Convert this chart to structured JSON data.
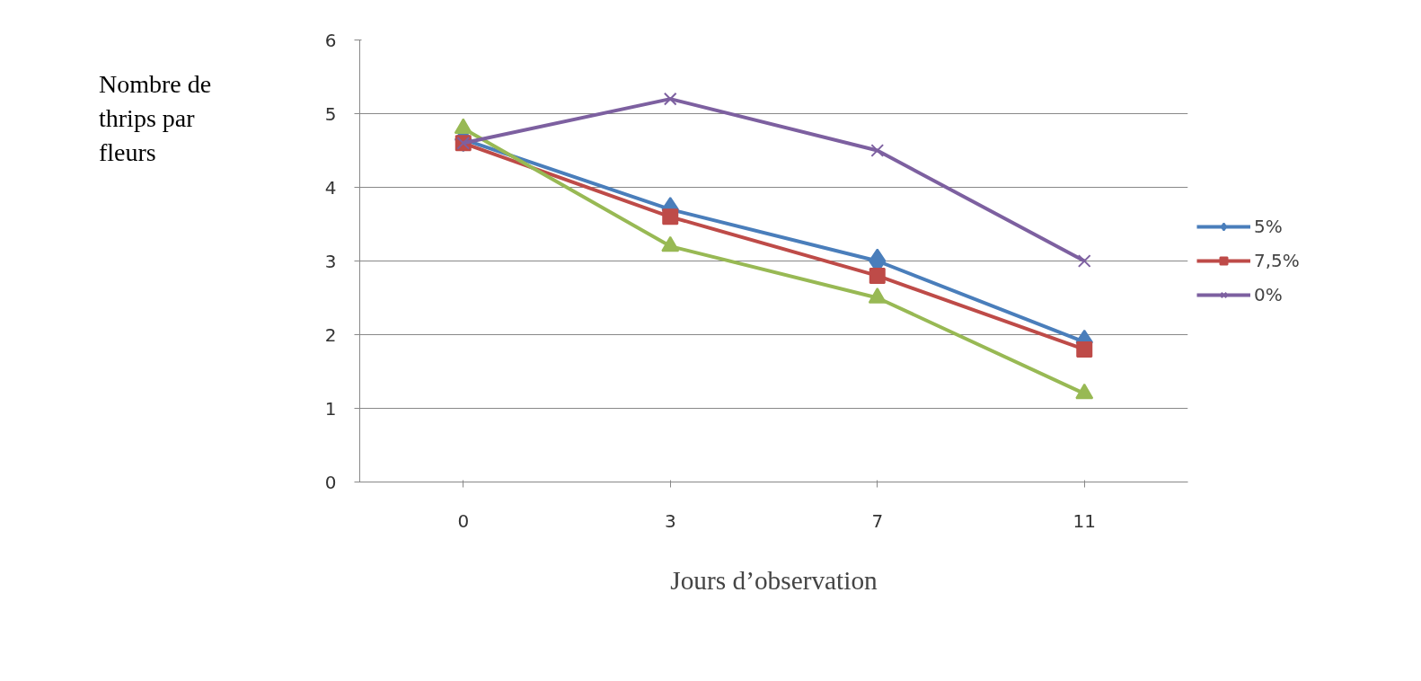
{
  "chart_data": {
    "type": "line",
    "xlabel": "Jours d’observation",
    "ylabel": "Nombre de thrips par fleurs",
    "categories": [
      "0",
      "3",
      "7",
      "11"
    ],
    "ylim": [
      0,
      6
    ],
    "yticks": [
      0,
      1,
      2,
      3,
      4,
      5,
      6
    ],
    "grid": "y",
    "legend": "right",
    "series": [
      {
        "name": "5%",
        "color": "#4a7ebb",
        "marker": "diamond",
        "values": [
          4.65,
          3.7,
          3.0,
          1.9
        ]
      },
      {
        "name": "7,5%",
        "color": "#be4b48",
        "marker": "square",
        "values": [
          4.6,
          3.6,
          2.8,
          1.8
        ]
      },
      {
        "color": "#98b954",
        "marker": "triangle",
        "values": [
          4.8,
          3.2,
          2.5,
          1.2
        ]
      },
      {
        "name": "0%",
        "color": "#7d60a0",
        "marker": "cross",
        "values": [
          4.6,
          5.2,
          4.5,
          3.0
        ]
      }
    ]
  }
}
